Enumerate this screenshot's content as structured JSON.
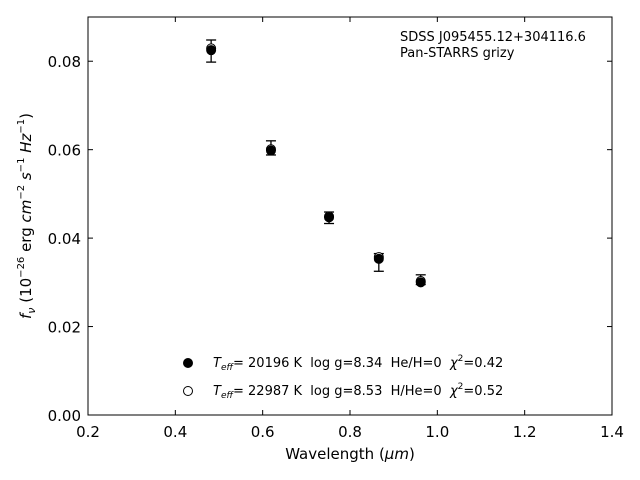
{
  "chart_data": {
    "type": "scatter",
    "xlabel": {
      "main": "Wavelength (",
      "unit": "μm",
      "close": ")"
    },
    "ylabel": {
      "a": "f",
      "a_sub": "ν",
      "b": " (10",
      "b_sup": "−26",
      "c": " erg ",
      "cm": "cm",
      "cm_sup": "−2",
      "s": " s",
      "s_sup": "−1",
      "hz": " Hz",
      "hz_sup": "−1",
      "close": ")"
    },
    "xlim": [
      0.2,
      1.4
    ],
    "ylim": [
      0.0,
      0.09
    ],
    "xticks": [
      0.2,
      0.4,
      0.6,
      0.8,
      1.0,
      1.2,
      1.4
    ],
    "xtick_labels": [
      "0.2",
      "0.4",
      "0.6",
      "0.8",
      "1.0",
      "1.2",
      "1.4"
    ],
    "yticks": [
      0.0,
      0.02,
      0.04,
      0.06,
      0.08
    ],
    "ytick_labels": [
      "0.00",
      "0.02",
      "0.04",
      "0.06",
      "0.08"
    ],
    "annotation": [
      "SDSS J095455.12+304116.6",
      "Pan-STARRS grizy"
    ],
    "observed": [
      {
        "x": 0.482,
        "y": 0.0823,
        "yerr_low": 0.0025,
        "yerr_high": 0.0025
      },
      {
        "x": 0.619,
        "y": 0.06,
        "yerr_low": 0.0012,
        "yerr_high": 0.002
      },
      {
        "x": 0.752,
        "y": 0.0446,
        "yerr_low": 0.0013,
        "yerr_high": 0.0013
      },
      {
        "x": 0.866,
        "y": 0.0355,
        "yerr_low": 0.003,
        "yerr_high": 0.001
      },
      {
        "x": 0.962,
        "y": 0.0302,
        "yerr_low": 0.0007,
        "yerr_high": 0.0015
      }
    ],
    "series": [
      {
        "marker": "filled",
        "x": [
          0.482,
          0.619,
          0.752,
          0.866,
          0.962
        ],
        "y": [
          0.0825,
          0.0598,
          0.0447,
          0.0353,
          0.03
        ],
        "legend": {
          "teff_label": "T",
          "teff_sub": "eff",
          "rest": "= 20196 K  log g=8.34  He/H=0  ",
          "chi": "χ",
          "chi_sup": "2",
          "chi_val": "=0.42"
        }
      },
      {
        "marker": "open",
        "x": [
          0.482,
          0.619,
          0.752,
          0.866,
          0.962
        ],
        "y": [
          0.0829,
          0.0601,
          0.0449,
          0.0357,
          0.0303
        ],
        "legend": {
          "teff_label": "T",
          "teff_sub": "eff",
          "rest": "= 22987 K  log g=8.53  H/He=0  ",
          "chi": "χ",
          "chi_sup": "2",
          "chi_val": "=0.52"
        }
      }
    ],
    "legend_placement": "lower-center",
    "grid": false
  }
}
